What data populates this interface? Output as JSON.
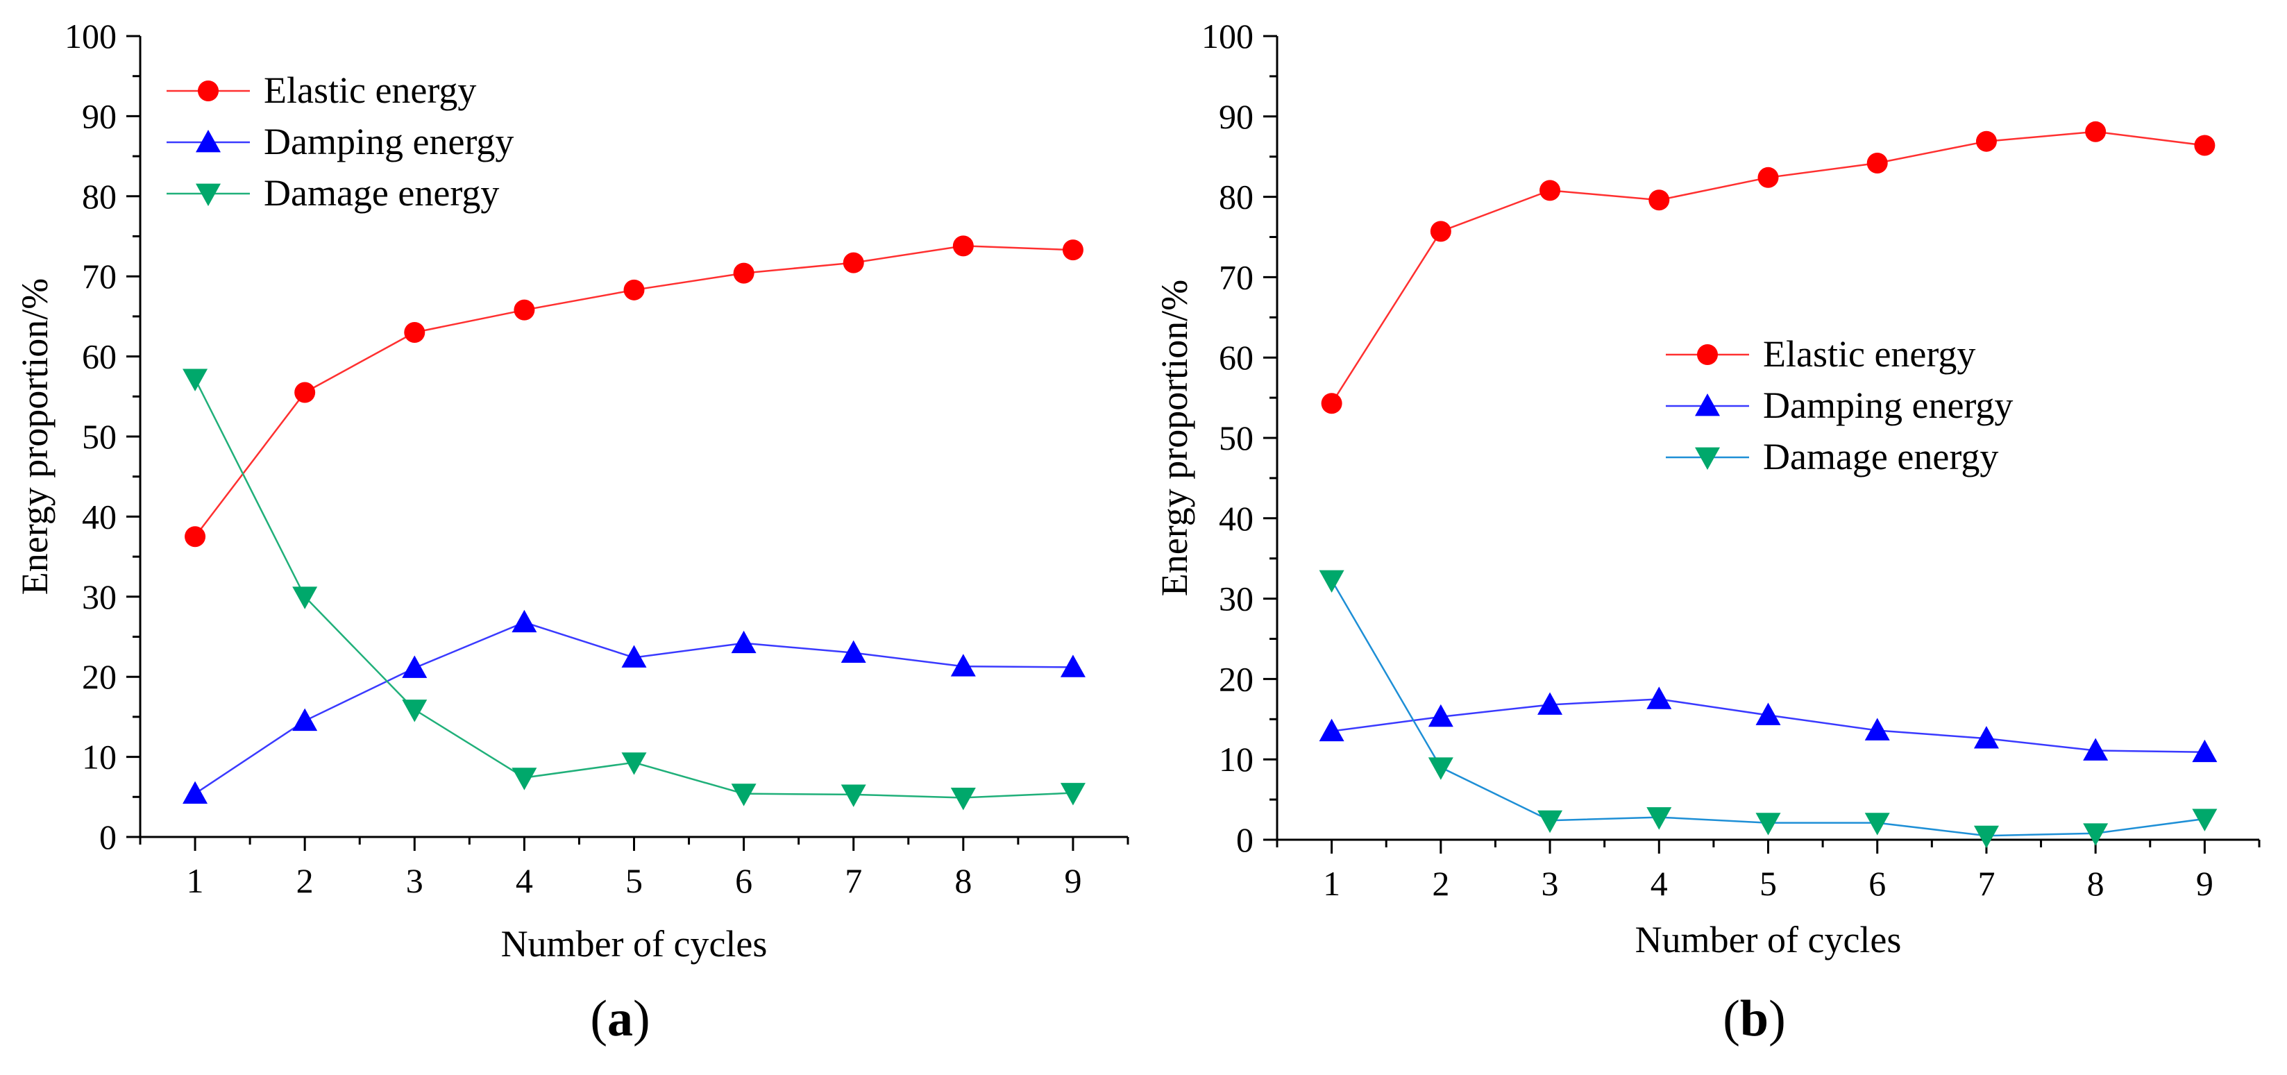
{
  "chart_data": [
    {
      "type": "line",
      "panel_label": "a",
      "xlabel": "Number of cycles",
      "ylabel": "Energy proportion/%",
      "x": [
        1,
        2,
        3,
        4,
        5,
        6,
        7,
        8,
        9
      ],
      "xlim": [
        0.5,
        9.5
      ],
      "ylim": [
        0,
        100
      ],
      "xticks": [
        "1",
        "2",
        "3",
        "4",
        "5",
        "6",
        "7",
        "8",
        "9"
      ],
      "yticks": [
        "0",
        "10",
        "20",
        "30",
        "40",
        "50",
        "60",
        "70",
        "80",
        "90",
        "100"
      ],
      "legend_position": "top-left",
      "series": [
        {
          "name": "Elastic energy",
          "marker": "circle",
          "color": "#ff0000",
          "line_color": "#ff3030",
          "values": [
            37.5,
            55.5,
            63.0,
            65.8,
            68.3,
            70.4,
            71.7,
            73.8,
            73.3
          ]
        },
        {
          "name": "Damping energy",
          "marker": "triangle-up",
          "color": "#0000ff",
          "line_color": "#3a3aff",
          "values": [
            5.4,
            14.5,
            21.1,
            26.8,
            22.4,
            24.2,
            23.0,
            21.3,
            21.2
          ]
        },
        {
          "name": "Damage energy",
          "marker": "triangle-down",
          "color": "#00a86b",
          "line_color": "#20b07a",
          "values": [
            57.2,
            30.0,
            15.9,
            7.4,
            9.3,
            5.4,
            5.3,
            4.9,
            5.5
          ]
        }
      ]
    },
    {
      "type": "line",
      "panel_label": "b",
      "xlabel": "Number of cycles",
      "ylabel": "Energy proportion/%",
      "x": [
        1,
        2,
        3,
        4,
        5,
        6,
        7,
        8,
        9
      ],
      "xlim": [
        0.5,
        9.5
      ],
      "ylim": [
        0,
        100
      ],
      "xticks": [
        "1",
        "2",
        "3",
        "4",
        "5",
        "6",
        "7",
        "8",
        "9"
      ],
      "yticks": [
        "0",
        "10",
        "20",
        "30",
        "40",
        "50",
        "60",
        "70",
        "80",
        "90",
        "100"
      ],
      "legend_position": "center-right",
      "series": [
        {
          "name": "Elastic energy",
          "marker": "circle",
          "color": "#ff0000",
          "line_color": "#ff3030",
          "values": [
            54.3,
            75.7,
            80.8,
            79.6,
            82.4,
            84.2,
            86.9,
            88.1,
            86.4
          ]
        },
        {
          "name": "Damping energy",
          "marker": "triangle-up",
          "color": "#0000ff",
          "line_color": "#3a3aff",
          "values": [
            13.5,
            15.3,
            16.8,
            17.5,
            15.5,
            13.6,
            12.6,
            11.1,
            10.9
          ]
        },
        {
          "name": "Damage energy",
          "marker": "triangle-down",
          "color": "#00a86b",
          "line_color": "#1e8fd6",
          "values": [
            32.3,
            9.0,
            2.4,
            2.8,
            2.1,
            2.1,
            0.5,
            0.8,
            2.6
          ]
        }
      ]
    }
  ]
}
